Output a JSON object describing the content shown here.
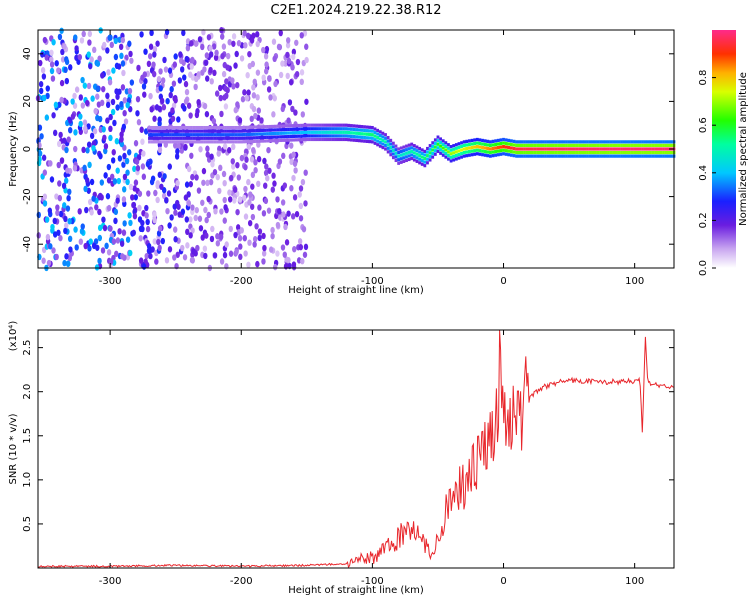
{
  "title": "C2E1.2024.219.22.38.R12",
  "chart_data": [
    {
      "type": "heatmap",
      "xlabel": "Height of straight line (km)",
      "ylabel": "Frequency (Hz)",
      "xlim": [
        -355,
        130
      ],
      "ylim": [
        -50,
        50
      ],
      "xticks": [
        -300,
        -200,
        -100,
        0,
        100
      ],
      "yticks": [
        -40,
        -20,
        0,
        20,
        40
      ],
      "grid": false,
      "colorbar": {
        "label": "Normalized spectral amplitude",
        "range": [
          0,
          1
        ],
        "ticks": [
          0.0,
          0.2,
          0.4,
          0.6,
          0.8
        ]
      },
      "ridge": {
        "x": [
          -270,
          -200,
          -150,
          -120,
          -100,
          -90,
          -80,
          -70,
          -60,
          -50,
          -40,
          -30,
          -20,
          -10,
          0,
          10,
          50,
          100,
          130
        ],
        "frequency": [
          6,
          6,
          7,
          7,
          6,
          3,
          -3,
          -1,
          -4,
          2,
          -2,
          0,
          1,
          0,
          1,
          0,
          0,
          0,
          0
        ],
        "amplitude": [
          0.3,
          0.32,
          0.4,
          0.5,
          0.55,
          0.5,
          0.45,
          0.5,
          0.55,
          0.6,
          0.7,
          0.75,
          0.8,
          0.85,
          0.9,
          0.95,
          0.97,
          0.98,
          0.98
        ]
      },
      "noise_region_x": [
        -355,
        -150
      ]
    },
    {
      "type": "line",
      "xlabel": "Height of straight line (km)",
      "ylabel": "SNR (10 * v/v)",
      "yunit_multiplier": "(x10⁴)",
      "xlim": [
        -355,
        130
      ],
      "ylim": [
        0,
        2.7
      ],
      "xticks": [
        -300,
        -200,
        -100,
        0,
        100
      ],
      "yticks": [
        0.5,
        1.0,
        1.5,
        2.0,
        2.5
      ],
      "series": [
        {
          "color": "#e8262b",
          "x": [
            -355,
            -300,
            -250,
            -200,
            -150,
            -120,
            -100,
            -90,
            -80,
            -75,
            -70,
            -65,
            -60,
            -55,
            -50,
            -45,
            -40,
            -35,
            -30,
            -25,
            -20,
            -15,
            -10,
            -5,
            -2,
            0,
            5,
            10,
            20,
            30,
            40,
            50,
            60,
            80,
            100,
            104,
            106,
            108,
            110,
            115,
            130
          ],
          "y": [
            0.02,
            0.02,
            0.03,
            0.02,
            0.03,
            0.05,
            0.12,
            0.2,
            0.35,
            0.45,
            0.5,
            0.35,
            0.25,
            0.15,
            0.35,
            0.6,
            0.75,
            0.85,
            0.95,
            1.05,
            1.2,
            1.35,
            1.5,
            1.6,
            2.5,
            1.8,
            1.7,
            1.75,
            1.95,
            2.05,
            2.1,
            2.13,
            2.12,
            2.11,
            2.12,
            2.15,
            1.5,
            2.65,
            2.1,
            2.08,
            2.05
          ]
        }
      ]
    }
  ]
}
